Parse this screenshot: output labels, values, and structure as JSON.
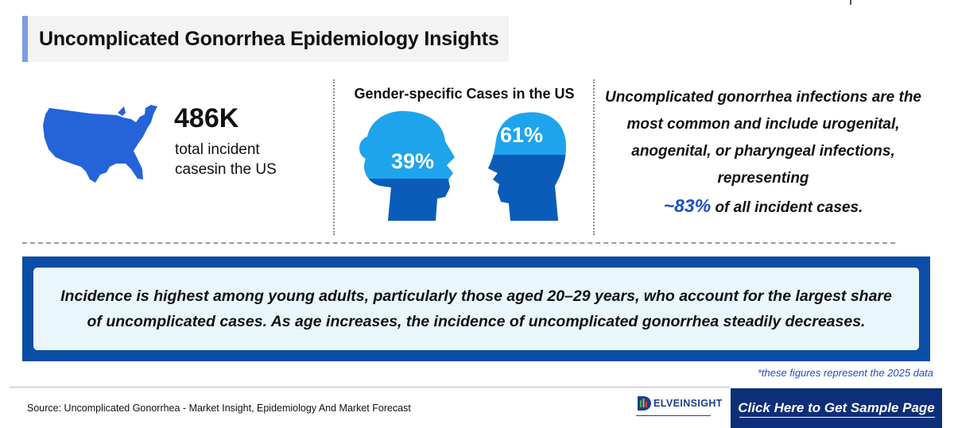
{
  "title": "Uncomplicated Gonorrhea Epidemiology Insights",
  "total_cases": {
    "value": "486K",
    "label": "total incident casesin the US"
  },
  "gender": {
    "title": "Gender-specific Cases in the US",
    "female_pct": "39%",
    "male_pct": "61%",
    "female_fill": 0.39,
    "male_fill": 0.61
  },
  "insight": {
    "text_before": "Uncomplicated gonorrhea infections are the most common and include urogenital, anogenital, or pharyngeal infections, representing",
    "highlight": "~83%",
    "text_after": "of all incident cases."
  },
  "banner_text": "Incidence is highest among young adults, particularly those aged 20–29 years, who account for the largest share of uncomplicated cases. As age increases, the incidence of uncomplicated gonorrhea steadily decreases.",
  "footnote": "*these figures represent the 2025 data",
  "source": "Source: Uncomplicated Gonorrhea - Market Insight, Epidemiology And Market Forecast",
  "logo_text": "ELVEINSIGHT",
  "cta_label": "Click Here to Get Sample Page",
  "colors": {
    "map_blue": "#2563d8",
    "head_light": "#1ea4ec",
    "head_dark": "#0b5cb8",
    "banner_blue": "#0b4ea5",
    "cta_navy": "#0d2e78",
    "highlight_blue": "#1e4fc2"
  },
  "icons": [
    "usa-map-icon",
    "female-head-icon",
    "male-head-icon",
    "delveinsight-logo-icon"
  ]
}
